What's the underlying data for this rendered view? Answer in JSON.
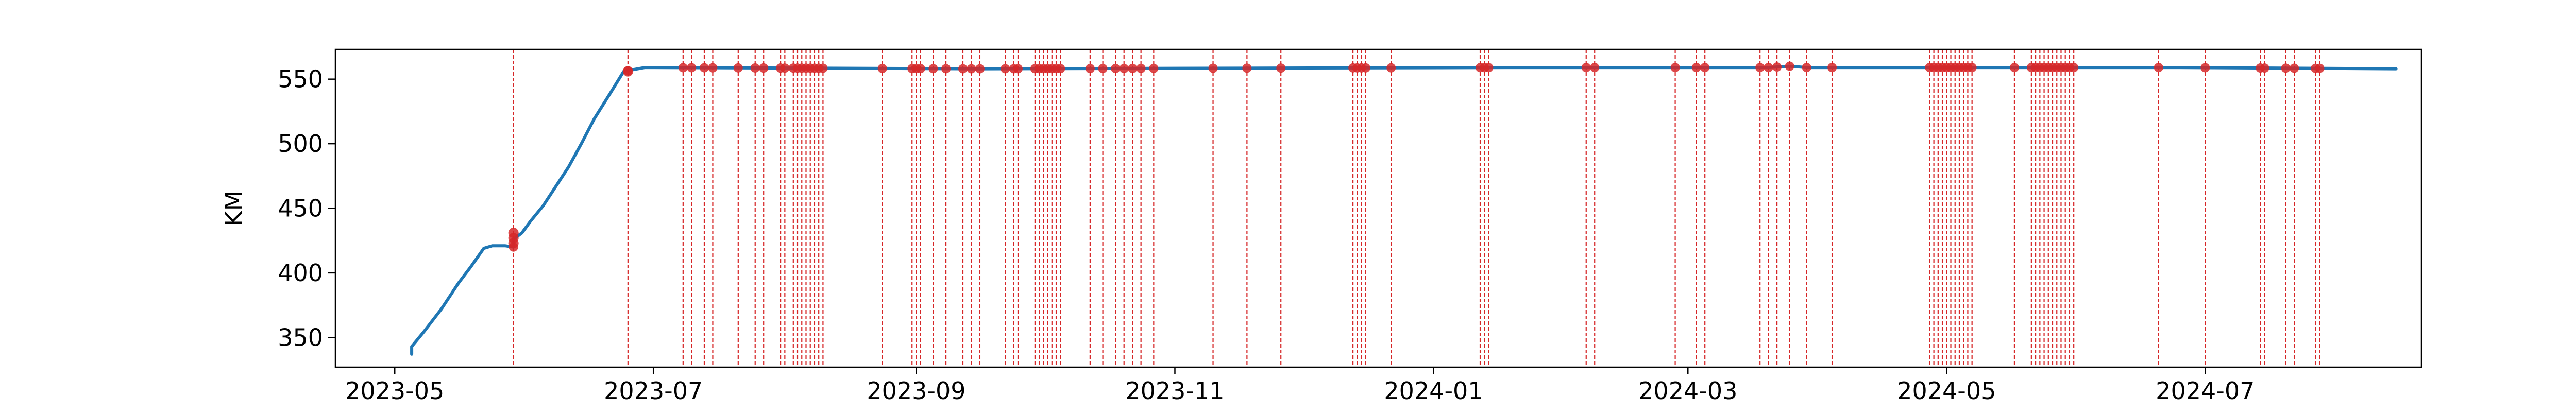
{
  "chart_data": {
    "type": "line",
    "title": "",
    "xlabel": "",
    "ylabel": "KM",
    "x_type": "date",
    "xlim": [
      "2023-04-17",
      "2024-08-21"
    ],
    "ylim": [
      327,
      573
    ],
    "x_ticks": [
      {
        "value": "2023-05-01",
        "label": "2023-05"
      },
      {
        "value": "2023-07-01",
        "label": "2023-07"
      },
      {
        "value": "2023-09-01",
        "label": "2023-09"
      },
      {
        "value": "2023-11-01",
        "label": "2023-11"
      },
      {
        "value": "2024-01-01",
        "label": "2024-01"
      },
      {
        "value": "2024-03-01",
        "label": "2024-03"
      },
      {
        "value": "2024-05-01",
        "label": "2024-05"
      },
      {
        "value": "2024-07-01",
        "label": "2024-07"
      }
    ],
    "y_ticks": [
      350,
      400,
      450,
      500,
      550
    ],
    "grid": false,
    "legend": "none",
    "series": [
      {
        "type": "line",
        "color": "#1f77b4",
        "points": [
          [
            "2023-05-05",
            337
          ],
          [
            "2023-05-05",
            343
          ],
          [
            "2023-05-08",
            355
          ],
          [
            "2023-05-12",
            372
          ],
          [
            "2023-05-16",
            392
          ],
          [
            "2023-05-19",
            405
          ],
          [
            "2023-05-22",
            419
          ],
          [
            "2023-05-24",
            421
          ],
          [
            "2023-05-27",
            421
          ],
          [
            "2023-05-29",
            420
          ],
          [
            "2023-05-29",
            426
          ],
          [
            "2023-05-31",
            431
          ],
          [
            "2023-06-02",
            440
          ],
          [
            "2023-06-05",
            452
          ],
          [
            "2023-06-08",
            467
          ],
          [
            "2023-06-11",
            482
          ],
          [
            "2023-06-14",
            500
          ],
          [
            "2023-06-17",
            519
          ],
          [
            "2023-06-21",
            540
          ],
          [
            "2023-06-24",
            556
          ],
          [
            "2023-06-29",
            559
          ],
          [
            "2023-09-15",
            558
          ],
          [
            "2024-01-20",
            559
          ],
          [
            "2024-03-20",
            559
          ],
          [
            "2024-03-25",
            560
          ],
          [
            "2024-03-29",
            559
          ],
          [
            "2024-04-20",
            559
          ],
          [
            "2024-06-25",
            559
          ],
          [
            "2024-08-15",
            558
          ]
        ]
      },
      {
        "type": "vlines",
        "color": "#d62728",
        "dates": [
          "2023-05-29",
          "2023-06-25",
          "2023-07-08",
          "2023-07-10",
          "2023-07-13",
          "2023-07-15",
          "2023-07-21",
          "2023-07-25",
          "2023-07-27",
          "2023-07-31",
          "2023-08-01",
          "2023-08-03",
          "2023-08-04",
          "2023-08-05",
          "2023-08-06",
          "2023-08-07",
          "2023-08-08",
          "2023-08-09",
          "2023-08-10",
          "2023-08-24",
          "2023-08-31",
          "2023-09-01",
          "2023-09-02",
          "2023-09-05",
          "2023-09-08",
          "2023-09-12",
          "2023-09-14",
          "2023-09-16",
          "2023-09-22",
          "2023-09-24",
          "2023-09-25",
          "2023-09-29",
          "2023-09-30",
          "2023-10-01",
          "2023-10-02",
          "2023-10-03",
          "2023-10-04",
          "2023-10-05",
          "2023-10-12",
          "2023-10-15",
          "2023-10-18",
          "2023-10-20",
          "2023-10-22",
          "2023-10-24",
          "2023-10-27",
          "2023-11-10",
          "2023-11-18",
          "2023-11-26",
          "2023-12-13",
          "2023-12-14",
          "2023-12-15",
          "2023-12-16",
          "2023-12-22",
          "2024-01-12",
          "2024-01-13",
          "2024-01-14",
          "2024-02-06",
          "2024-02-08",
          "2024-02-27",
          "2024-03-03",
          "2024-03-05",
          "2024-03-18",
          "2024-03-20",
          "2024-03-22",
          "2024-03-25",
          "2024-03-29",
          "2024-04-04",
          "2024-04-27",
          "2024-04-28",
          "2024-04-29",
          "2024-04-30",
          "2024-05-01",
          "2024-05-02",
          "2024-05-03",
          "2024-05-04",
          "2024-05-05",
          "2024-05-06",
          "2024-05-07",
          "2024-05-17",
          "2024-05-21",
          "2024-05-22",
          "2024-05-23",
          "2024-05-24",
          "2024-05-25",
          "2024-05-26",
          "2024-05-27",
          "2024-05-28",
          "2024-05-29",
          "2024-05-30",
          "2024-05-31",
          "2024-06-20",
          "2024-07-01",
          "2024-07-14",
          "2024-07-15",
          "2024-07-20",
          "2024-07-22",
          "2024-07-27",
          "2024-07-28"
        ]
      },
      {
        "type": "markers",
        "color": "#d62728",
        "points": [
          [
            "2023-05-29",
            423
          ],
          [
            "2023-05-29",
            427
          ],
          [
            "2023-05-29",
            431
          ],
          [
            "2023-06-25",
            556
          ]
        ]
      }
    ]
  }
}
